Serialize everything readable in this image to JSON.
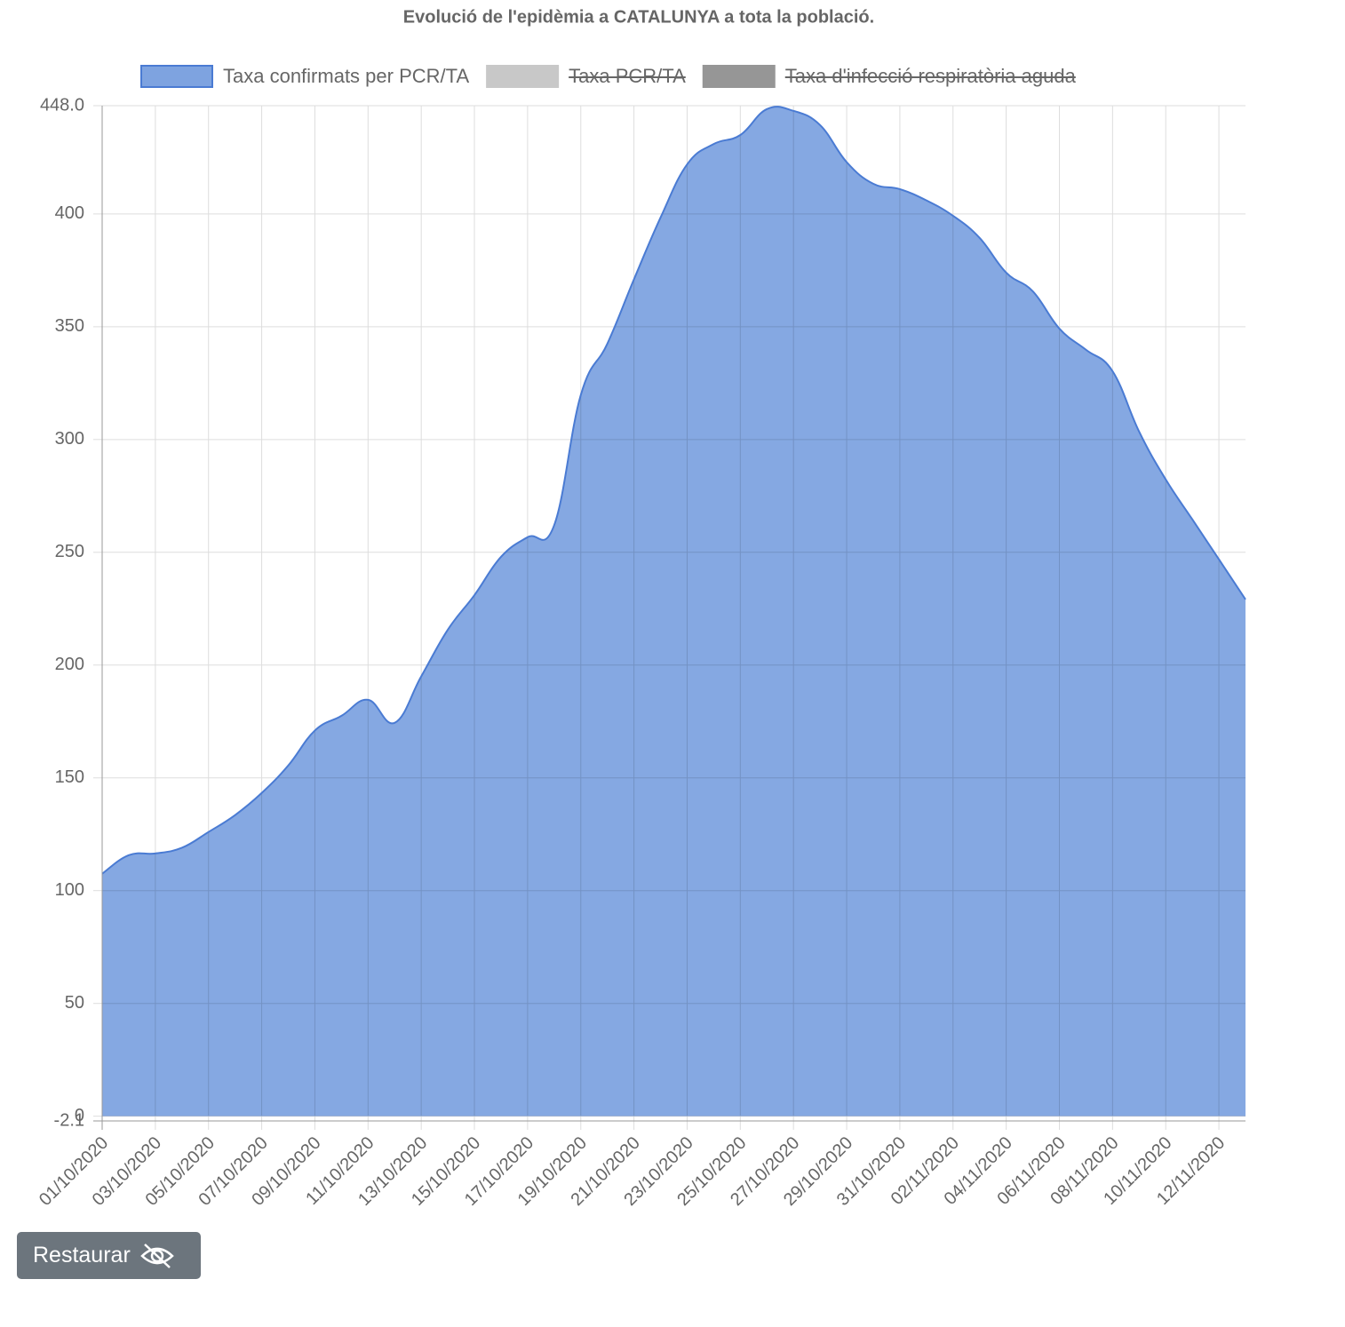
{
  "chart_data": {
    "type": "area",
    "title": "Evolució de l'epidèmia a CATALUNYA a tota la població.",
    "categories": [
      "01/10/2020",
      null,
      "03/10/2020",
      null,
      "05/10/2020",
      null,
      "07/10/2020",
      null,
      "09/10/2020",
      null,
      "11/10/2020",
      null,
      "13/10/2020",
      null,
      "15/10/2020",
      null,
      "17/10/2020",
      null,
      "19/10/2020",
      null,
      "21/10/2020",
      null,
      "23/10/2020",
      null,
      "25/10/2020",
      null,
      "27/10/2020",
      null,
      "29/10/2020",
      null,
      "31/10/2020",
      null,
      "02/11/2020",
      null,
      "04/11/2020",
      null,
      "06/11/2020",
      null,
      "08/11/2020",
      null,
      "10/11/2020",
      null,
      "12/11/2020",
      null
    ],
    "series": [
      {
        "name": "Taxa confirmats per PCR/TA",
        "color": "#7ea3e0",
        "border_color": "#4a7bd3",
        "hidden": false,
        "values": [
          107.5,
          115.7,
          116.5,
          119,
          126,
          133.5,
          143.3,
          155.5,
          171,
          177.5,
          184.6,
          174.4,
          195,
          215.7,
          231,
          248,
          256.7,
          262,
          319.7,
          342.5,
          371,
          398.4,
          422,
          431,
          435,
          446.5,
          445.7,
          439.4,
          423,
          413.4,
          411,
          406,
          399.2,
          389.4,
          374,
          365.7,
          349.2,
          339.8,
          330.3,
          303.5,
          282.3,
          264.6,
          246.9,
          229.1
        ]
      },
      {
        "name": "Taxa PCR/TA",
        "color": "#c8c8c8",
        "hidden": true
      },
      {
        "name": "Taxa d'infecció respiratòria aguda",
        "color": "#969696",
        "hidden": true
      }
    ],
    "ylim": [
      -2.1,
      448
    ],
    "yticks": [
      {
        "value": 448,
        "label": "448.0"
      },
      400,
      350,
      300,
      250,
      200,
      150,
      100,
      50,
      0,
      -2.1
    ],
    "grid": true
  },
  "button": {
    "label": "Restaurar"
  }
}
